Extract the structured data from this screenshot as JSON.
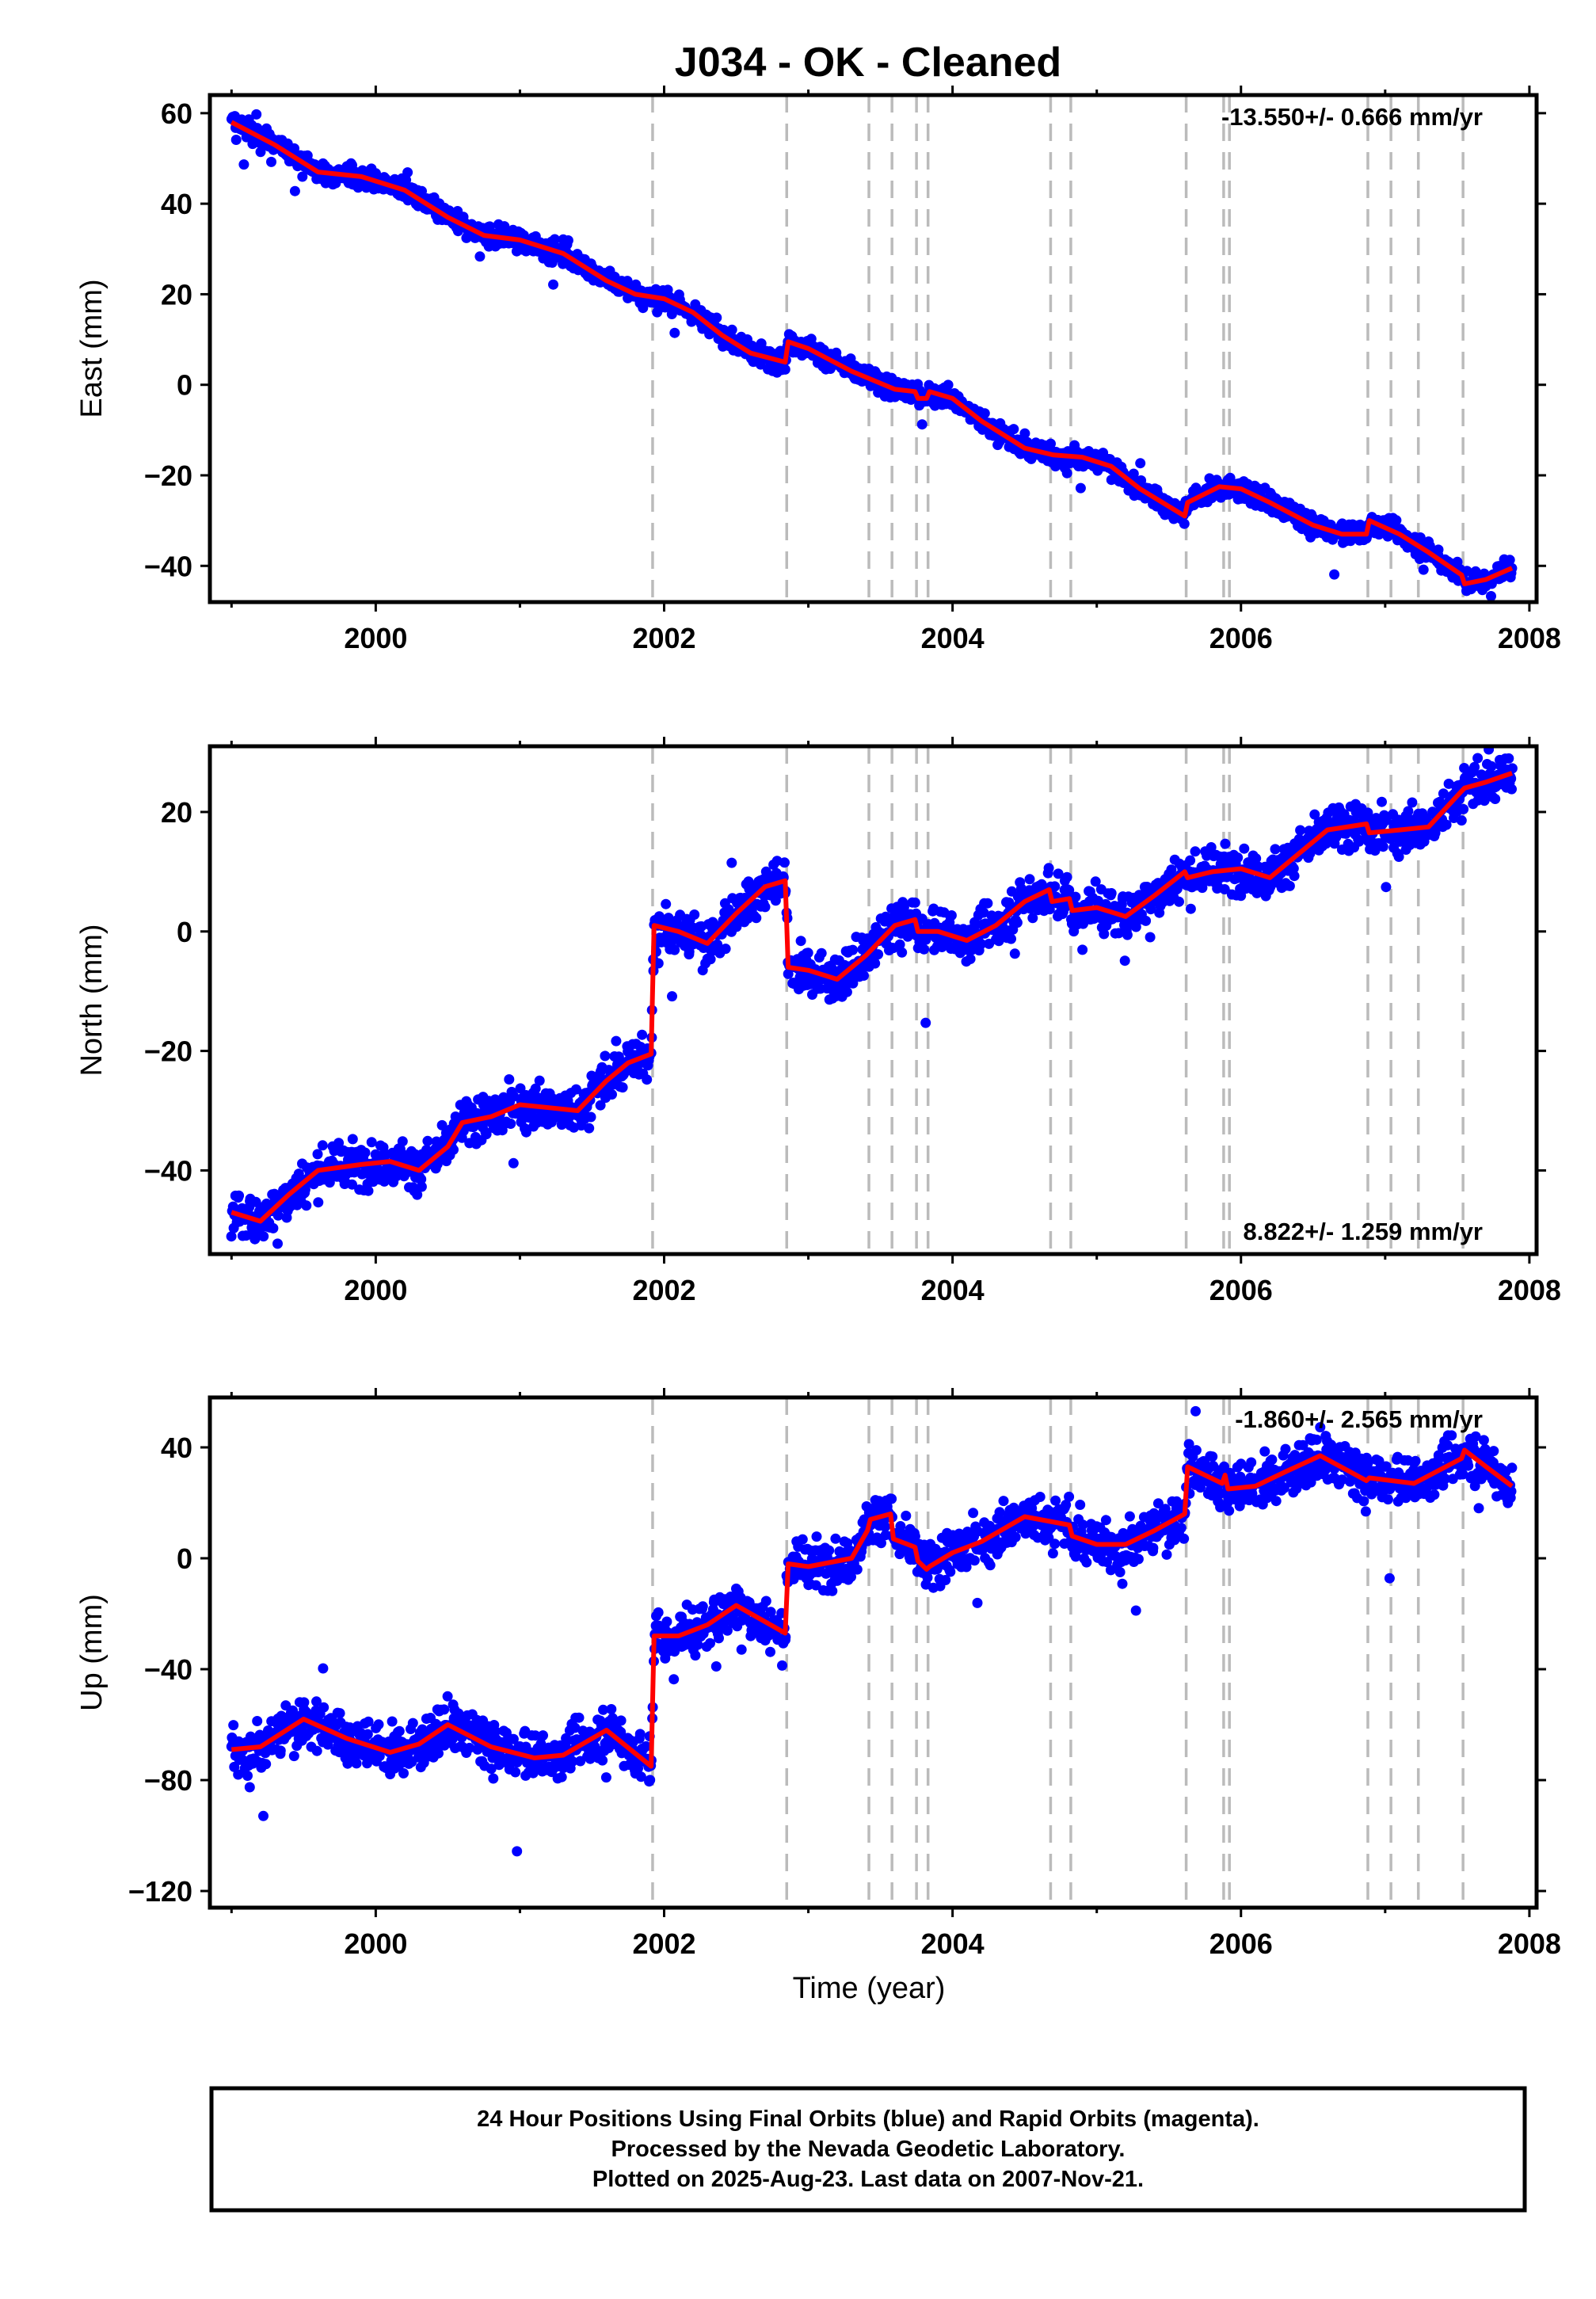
{
  "title": "J034  - OK - Cleaned",
  "colors": {
    "data_points": "#0000ff",
    "model_line": "#ff0000",
    "event_lines": "#bbbbbb",
    "frame": "#000000"
  },
  "x_axis": {
    "label": "Time (year)",
    "range": [
      1998.85,
      2008.05
    ],
    "ticks": [
      "2000",
      "2002",
      "2004",
      "2006",
      "2008"
    ],
    "tick_values": [
      2000,
      2002,
      2004,
      2006,
      2008
    ]
  },
  "event_lines": [
    2001.92,
    2002.85,
    2003.42,
    2003.58,
    2003.75,
    2003.83,
    2004.68,
    2004.82,
    2005.62,
    2005.88,
    2005.92,
    2006.88,
    2007.04,
    2007.23,
    2007.54
  ],
  "footer": {
    "line1": "24 Hour Positions Using Final Orbits (blue) and Rapid Orbits (magenta).",
    "line2": "Processed by the Nevada Geodetic Laboratory.",
    "line3": "Plotted on 2025-Aug-23. Last data on 2007-Nov-21."
  },
  "chart_data": [
    {
      "type": "scatter",
      "ylabel": "East (mm)",
      "ylim": [
        -48,
        64
      ],
      "yticks": [
        "60",
        "40",
        "20",
        "0",
        "−20",
        "−40"
      ],
      "ytick_values": [
        60,
        40,
        20,
        0,
        -20,
        -40
      ],
      "rate_label": "-13.550+/- 0.666 mm/yr",
      "rate_position": "top-right",
      "trend_mm_per_yr": -13.55,
      "model": [
        [
          1999.0,
          58
        ],
        [
          1999.3,
          53
        ],
        [
          1999.6,
          47
        ],
        [
          1999.9,
          46
        ],
        [
          2000.2,
          43
        ],
        [
          2000.5,
          37
        ],
        [
          2000.75,
          33
        ],
        [
          2001.0,
          32
        ],
        [
          2001.3,
          29
        ],
        [
          2001.6,
          23
        ],
        [
          2001.8,
          20
        ],
        [
          2002.0,
          19
        ],
        [
          2002.2,
          16
        ],
        [
          2002.4,
          11
        ],
        [
          2002.6,
          7
        ],
        [
          2002.84,
          5
        ],
        [
          2002.86,
          9.5
        ],
        [
          2003.0,
          8
        ],
        [
          2003.3,
          3
        ],
        [
          2003.6,
          -1
        ],
        [
          2003.74,
          -1.5
        ],
        [
          2003.76,
          -3
        ],
        [
          2003.82,
          -3
        ],
        [
          2003.84,
          -1.5
        ],
        [
          2004.0,
          -3
        ],
        [
          2004.2,
          -8
        ],
        [
          2004.5,
          -14
        ],
        [
          2004.7,
          -15.5
        ],
        [
          2004.9,
          -16
        ],
        [
          2005.1,
          -18
        ],
        [
          2005.3,
          -23
        ],
        [
          2005.61,
          -29
        ],
        [
          2005.63,
          -26
        ],
        [
          2005.85,
          -22.5
        ],
        [
          2006.0,
          -23
        ],
        [
          2006.2,
          -26
        ],
        [
          2006.5,
          -31
        ],
        [
          2006.7,
          -33
        ],
        [
          2006.87,
          -33
        ],
        [
          2006.89,
          -30
        ],
        [
          2007.1,
          -33
        ],
        [
          2007.3,
          -37
        ],
        [
          2007.53,
          -42
        ],
        [
          2007.55,
          -44
        ],
        [
          2007.7,
          -43
        ],
        [
          2007.88,
          -40.5
        ]
      ]
    },
    {
      "type": "scatter",
      "ylabel": "North (mm)",
      "ylim": [
        -54,
        31
      ],
      "yticks": [
        "20",
        "0",
        "−20",
        "−40"
      ],
      "ytick_values": [
        20,
        0,
        -20,
        -40
      ],
      "rate_label": "8.822+/- 1.259 mm/yr",
      "rate_position": "bottom-right",
      "trend_mm_per_yr": 8.822,
      "model": [
        [
          1999.0,
          -47
        ],
        [
          1999.2,
          -48.5
        ],
        [
          1999.4,
          -44
        ],
        [
          1999.6,
          -40
        ],
        [
          1999.9,
          -39
        ],
        [
          2000.1,
          -38.5
        ],
        [
          2000.3,
          -40
        ],
        [
          2000.5,
          -36
        ],
        [
          2000.6,
          -32
        ],
        [
          2000.8,
          -31
        ],
        [
          2001.0,
          -29
        ],
        [
          2001.2,
          -29.5
        ],
        [
          2001.4,
          -30
        ],
        [
          2001.6,
          -25
        ],
        [
          2001.75,
          -22
        ],
        [
          2001.91,
          -20.5
        ],
        [
          2001.93,
          1
        ],
        [
          2002.1,
          0
        ],
        [
          2002.3,
          -2
        ],
        [
          2002.5,
          3
        ],
        [
          2002.7,
          7.5
        ],
        [
          2002.84,
          8.5
        ],
        [
          2002.86,
          -6
        ],
        [
          2003.0,
          -6.5
        ],
        [
          2003.2,
          -8
        ],
        [
          2003.4,
          -4
        ],
        [
          2003.6,
          1
        ],
        [
          2003.74,
          2
        ],
        [
          2003.76,
          0
        ],
        [
          2003.9,
          0
        ],
        [
          2004.1,
          -1.5
        ],
        [
          2004.3,
          1
        ],
        [
          2004.5,
          5
        ],
        [
          2004.67,
          7
        ],
        [
          2004.69,
          5
        ],
        [
          2004.81,
          5.5
        ],
        [
          2004.83,
          3.5
        ],
        [
          2005.0,
          4
        ],
        [
          2005.2,
          2.5
        ],
        [
          2005.4,
          6
        ],
        [
          2005.61,
          10
        ],
        [
          2005.63,
          9
        ],
        [
          2005.8,
          10
        ],
        [
          2006.0,
          10.5
        ],
        [
          2006.2,
          9
        ],
        [
          2006.4,
          13
        ],
        [
          2006.6,
          17
        ],
        [
          2006.87,
          18
        ],
        [
          2006.89,
          16.5
        ],
        [
          2007.1,
          17
        ],
        [
          2007.3,
          17.5
        ],
        [
          2007.53,
          23.5
        ],
        [
          2007.55,
          24
        ],
        [
          2007.7,
          25
        ],
        [
          2007.88,
          26.5
        ]
      ]
    },
    {
      "type": "scatter",
      "ylabel": "Up (mm)",
      "ylim": [
        -126,
        58
      ],
      "yticks": [
        "40",
        "0",
        "−40",
        "−80",
        "−120"
      ],
      "ytick_values": [
        40,
        0,
        -40,
        -80,
        -120
      ],
      "rate_label": "-1.860+/- 2.565 mm/yr",
      "rate_position": "top-right",
      "trend_mm_per_yr": -1.86,
      "model": [
        [
          1999.0,
          -69
        ],
        [
          1999.2,
          -68
        ],
        [
          1999.5,
          -58
        ],
        [
          1999.8,
          -65
        ],
        [
          2000.1,
          -70
        ],
        [
          2000.3,
          -67
        ],
        [
          2000.5,
          -60
        ],
        [
          2000.8,
          -68
        ],
        [
          2001.1,
          -72
        ],
        [
          2001.3,
          -71
        ],
        [
          2001.6,
          -62
        ],
        [
          2001.91,
          -75
        ],
        [
          2001.93,
          -28
        ],
        [
          2002.1,
          -28
        ],
        [
          2002.3,
          -24
        ],
        [
          2002.5,
          -17
        ],
        [
          2002.84,
          -27
        ],
        [
          2002.86,
          -2
        ],
        [
          2003.0,
          -3
        ],
        [
          2003.3,
          0
        ],
        [
          2003.41,
          10
        ],
        [
          2003.43,
          14
        ],
        [
          2003.57,
          16
        ],
        [
          2003.59,
          7
        ],
        [
          2003.74,
          4
        ],
        [
          2003.76,
          -1
        ],
        [
          2003.82,
          -4
        ],
        [
          2003.84,
          -3
        ],
        [
          2004.0,
          2
        ],
        [
          2004.2,
          6
        ],
        [
          2004.5,
          15
        ],
        [
          2004.81,
          12
        ],
        [
          2004.83,
          8
        ],
        [
          2005.0,
          5
        ],
        [
          2005.2,
          5
        ],
        [
          2005.4,
          10
        ],
        [
          2005.61,
          16
        ],
        [
          2005.63,
          33
        ],
        [
          2005.87,
          27
        ],
        [
          2005.89,
          30
        ],
        [
          2005.91,
          25
        ],
        [
          2006.1,
          26
        ],
        [
          2006.3,
          31
        ],
        [
          2006.55,
          37
        ],
        [
          2006.87,
          28
        ],
        [
          2006.89,
          29
        ],
        [
          2007.2,
          27
        ],
        [
          2007.53,
          36
        ],
        [
          2007.55,
          39
        ],
        [
          2007.7,
          33
        ],
        [
          2007.88,
          26
        ]
      ]
    }
  ]
}
